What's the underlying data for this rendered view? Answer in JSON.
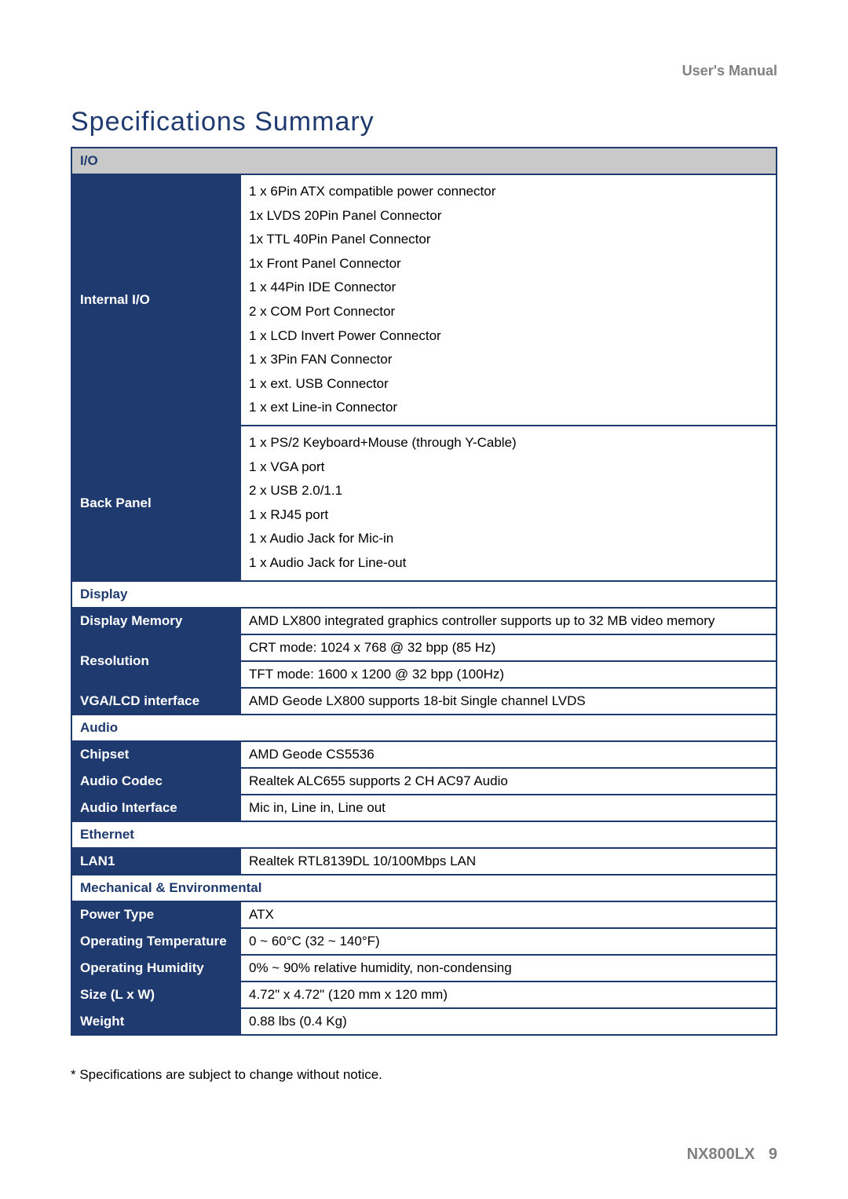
{
  "header": {
    "right_text": "User's  Manual"
  },
  "title": "Specifications Summary",
  "sections": {
    "io": {
      "header": "I/O",
      "internal_label": "Internal I/O",
      "internal_lines": [
        "1 x 6Pin ATX compatible power connector",
        "1x LVDS 20Pin Panel Connector",
        "1x TTL 40Pin Panel Connector",
        "1x Front Panel Connector",
        "1 x 44Pin IDE Connector",
        "2 x COM Port Connector",
        "1 x LCD Invert Power Connector",
        "1 x 3Pin FAN Connector",
        "1 x ext. USB Connector",
        "1 x ext Line-in Connector"
      ],
      "back_label": "Back Panel",
      "back_lines": [
        "1 x PS/2 Keyboard+Mouse (through Y-Cable)",
        "1 x VGA port",
        "2 x USB 2.0/1.1",
        "1 x RJ45 port",
        "1 x Audio Jack for Mic-in",
        "1 x Audio Jack for Line-out"
      ]
    },
    "display": {
      "header": "Display",
      "memory_label": "Display Memory",
      "memory_value": "AMD LX800 integrated graphics controller supports up to 32 MB video memory",
      "resolution_label": "Resolution",
      "resolution_lines": [
        "CRT mode: 1024 x 768 @ 32 bpp (85 Hz)",
        "TFT mode: 1600 x 1200 @ 32 bpp (100Hz)"
      ],
      "vga_label": "VGA/LCD interface",
      "vga_value": "AMD Geode LX800 supports 18-bit Single channel LVDS"
    },
    "audio": {
      "header": "Audio",
      "chipset_label": "Chipset",
      "chipset_value": "AMD Geode CS5536",
      "codec_label": "Audio Codec",
      "codec_value": "Realtek ALC655 supports 2 CH AC97 Audio",
      "interface_label": "Audio Interface",
      "interface_value": "Mic in, Line in, Line out"
    },
    "ethernet": {
      "header": "Ethernet",
      "lan1_label": "LAN1",
      "lan1_value": "Realtek RTL8139DL 10/100Mbps LAN"
    },
    "mech": {
      "header": "Mechanical & Environmental",
      "power_label": "Power Type",
      "power_value": "ATX",
      "temp_label": "Operating Temperature",
      "temp_value": "0 ~ 60°C (32 ~ 140°F)",
      "humidity_label": "Operating Humidity",
      "humidity_value": "0% ~ 90% relative humidity, non-condensing",
      "size_label": "Size (L x W)",
      "size_value": "4.72\" x 4.72\" (120 mm x 120 mm)",
      "weight_label": "Weight",
      "weight_value": "0.88 lbs (0.4 Kg)"
    }
  },
  "footnote": "* Specifications are subject to change without notice.",
  "footer": {
    "model": "NX800LX",
    "page": "9"
  },
  "colors": {
    "brand_blue": "#1f3a6e",
    "gray_bg": "#c9c9c9",
    "gray_text": "#808080"
  }
}
